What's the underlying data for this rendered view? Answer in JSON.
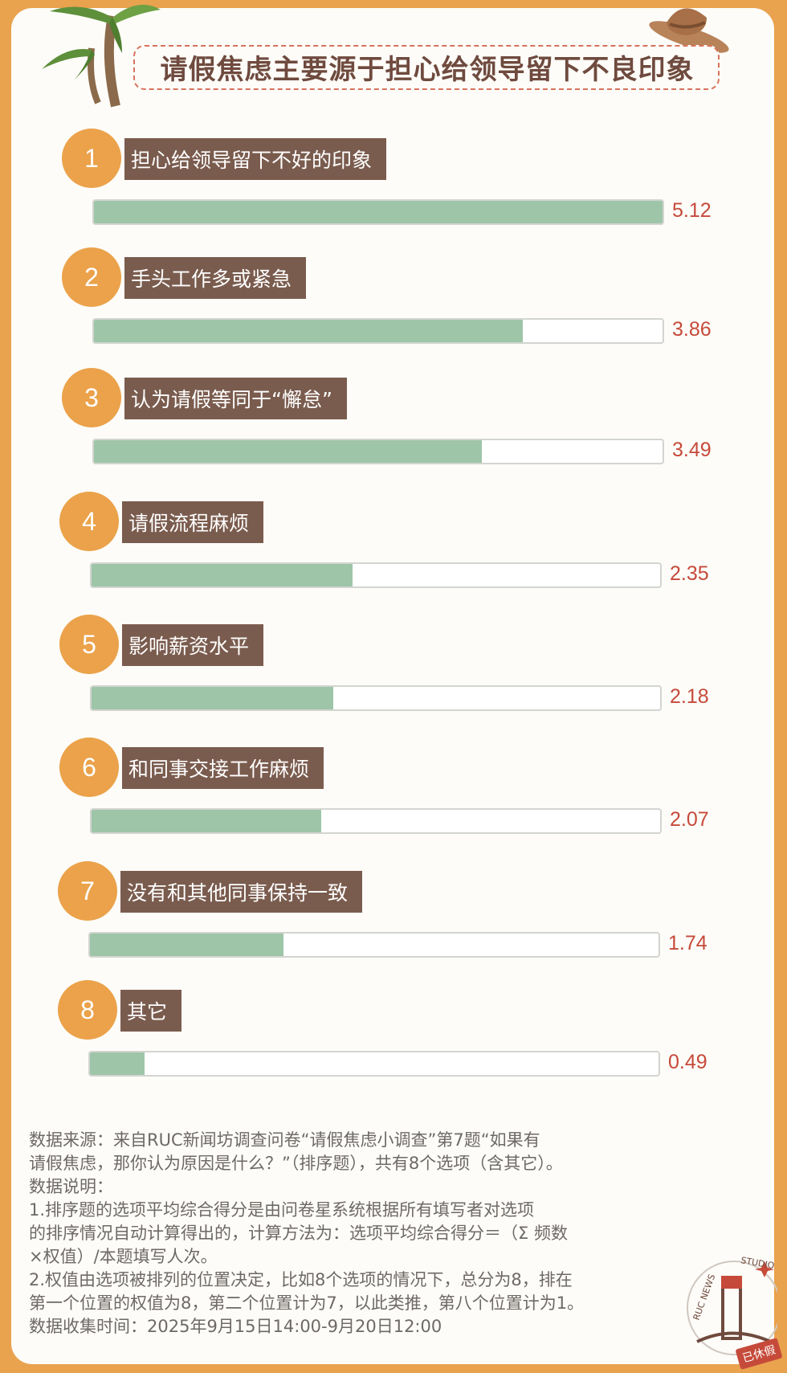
{
  "title": "请假焦虑主要源于担心给领导留下不良印象",
  "chart_data": {
    "type": "bar",
    "title": "请假焦虑主要源于担心给领导留下不良印象",
    "categories": [
      "担心给领导留下不好的印象",
      "手头工作多或紧急",
      "认为请假等同于“懈怠”",
      "请假流程麻烦",
      "影响薪资水平",
      "和同事交接工作麻烦",
      "没有和其他同事保持一致",
      "其它"
    ],
    "ranks": [
      "1",
      "2",
      "3",
      "4",
      "5",
      "6",
      "7",
      "8"
    ],
    "values": [
      5.12,
      3.86,
      3.49,
      2.35,
      2.18,
      2.07,
      1.74,
      0.49
    ],
    "value_labels": [
      "5.12",
      "3.86",
      "3.49",
      "2.35",
      "2.18",
      "2.07",
      "1.74",
      "0.49"
    ],
    "xlim": [
      0,
      5.12
    ],
    "colors": {
      "bar": "#9ec5a8",
      "label_bg": "#7a5c4e",
      "rank_circle": "#eba24a",
      "value_text": "#c64a3a",
      "frame": "#e9a24e"
    }
  },
  "notes": [
    "数据来源：来自RUC新闻坊调查问卷“请假焦虑小调查”第7题“如果有",
    "请假焦虑，那你认为原因是什么？”（排序题），共有8个选项（含其它）。",
    "数据说明：",
    "1.排序题的选项平均综合得分是由问卷星系统根据所有填写者对选项",
    "的排序情况自动计算得出的，计算方法为：选项平均综合得分＝（Σ 频数",
    "×权值）/本题填写人次。",
    "2.权值由选项被排列的位置决定，比如8个选项的情况下，总分为8，排在",
    "第一个位置的权值为8，第二个位置计为7，以此类推，第八个位置计为1。",
    "数据收集时间：2025年9月15日14:00-9月20日12:00"
  ],
  "stamp": {
    "brand": "RUC NEWS STUDIO",
    "tag": "已休假"
  }
}
